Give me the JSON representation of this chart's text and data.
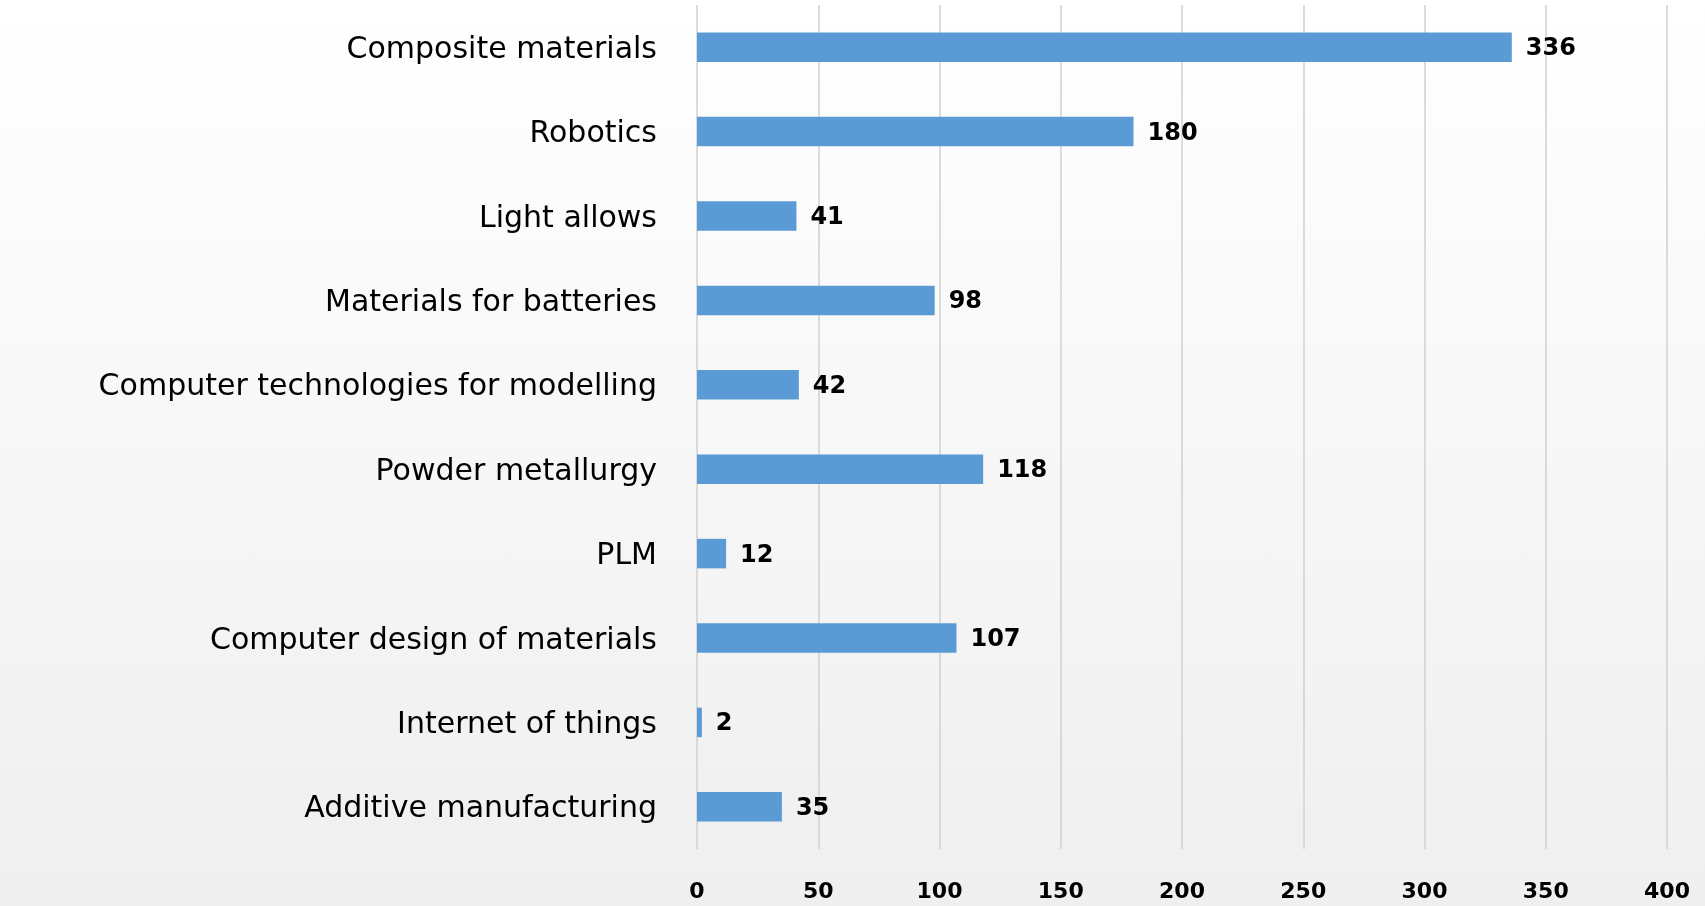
{
  "chart_data": {
    "type": "bar",
    "orientation": "horizontal",
    "categories": [
      "Composite materials",
      "Robotics",
      "Light allows",
      "Materials for batteries",
      "Computer technologies for modelling",
      "Powder metallurgy",
      "PLM",
      "Computer design of materials",
      "Internet of things",
      "Additive manufacturing"
    ],
    "values": [
      336,
      180,
      41,
      98,
      42,
      118,
      12,
      107,
      2,
      35
    ],
    "color": "#5b9bd5",
    "xlim": [
      0,
      400
    ],
    "xticks": [
      0,
      50,
      100,
      150,
      200,
      250,
      300,
      350,
      400
    ],
    "grid": "x",
    "data_labels": true
  }
}
